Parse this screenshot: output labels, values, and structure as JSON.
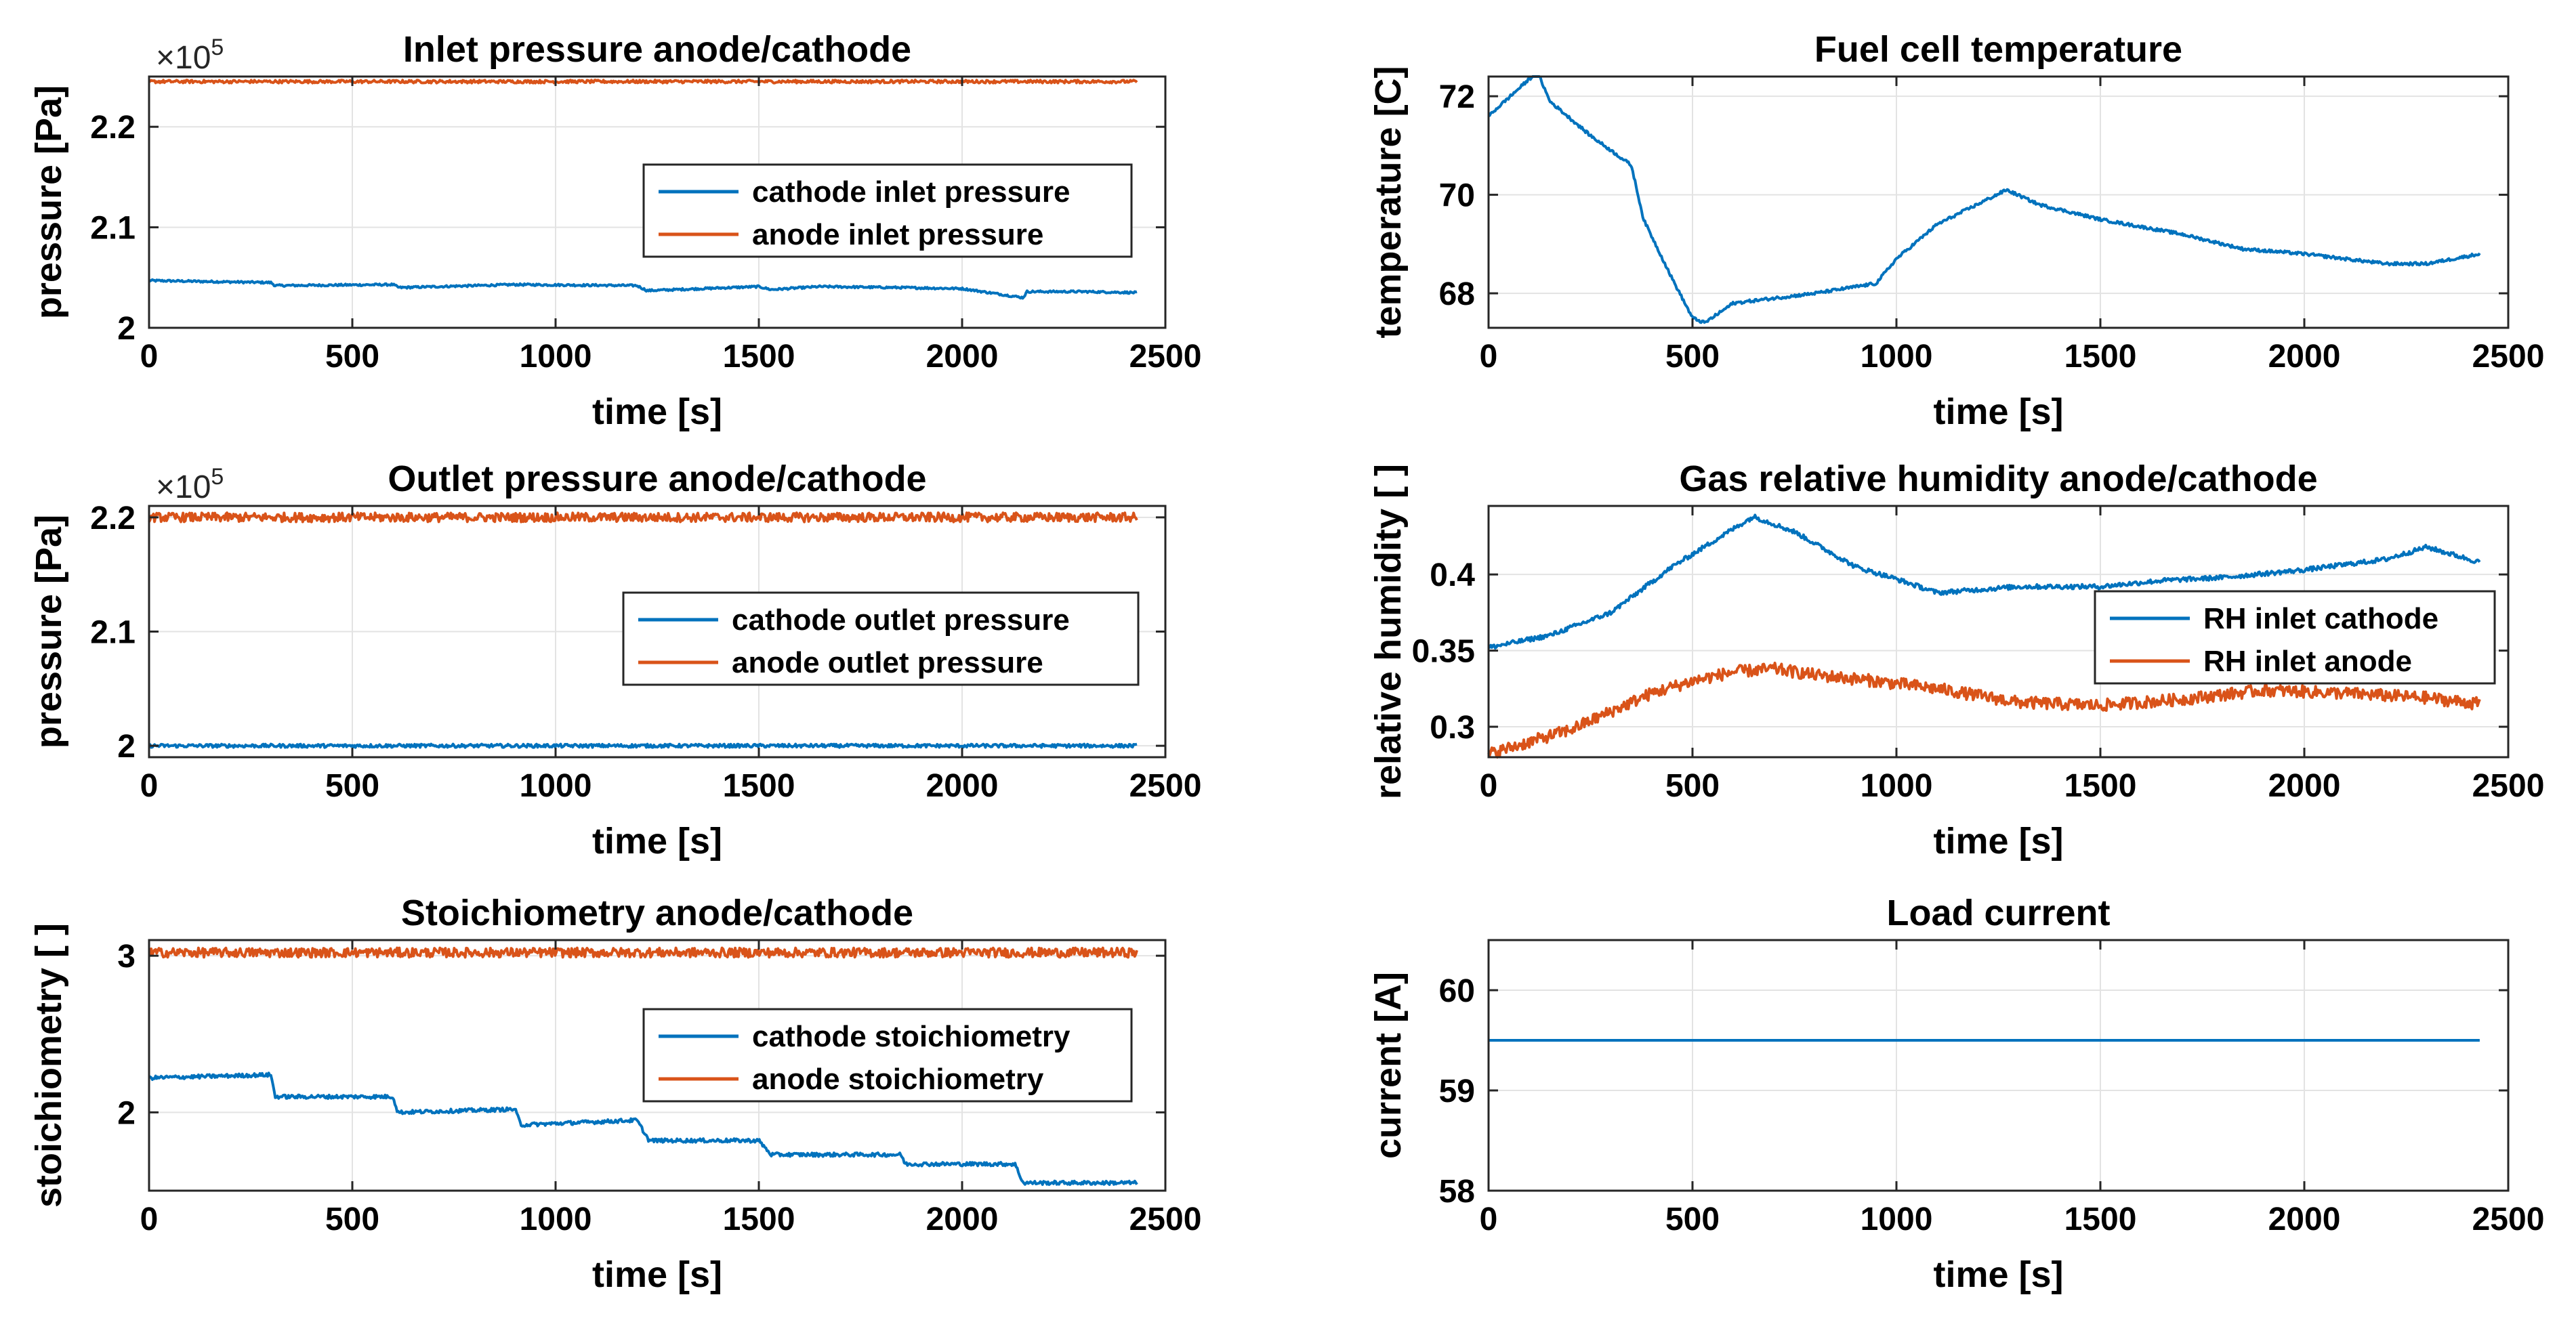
{
  "colors": {
    "cathode": "#0072BD",
    "anode": "#D95319",
    "axis": "#262626",
    "grid": "#e3e3e3"
  },
  "chart_data": [
    {
      "id": "inlet",
      "type": "line",
      "title": "Inlet pressure anode/cathode",
      "xlabel": "time [s]",
      "ylabel": "pressure [Pa]",
      "y_exponent": {
        "times": "×10",
        "power": "5"
      },
      "xlim": [
        0,
        2500
      ],
      "ylim": [
        2.0,
        2.25
      ],
      "xticks": [
        0,
        500,
        1000,
        1500,
        2000,
        2500
      ],
      "xtick_labels": [
        "0",
        "500",
        "1000",
        "1500",
        "2000",
        "2500"
      ],
      "yticks": [
        2.0,
        2.1,
        2.2
      ],
      "ytick_labels": [
        "2",
        "2.1",
        "2.2"
      ],
      "legend": {
        "position": "center-right"
      },
      "series": [
        {
          "name": "cathode inlet pressure",
          "color": "#0072BD",
          "x": [
            0,
            150,
            300,
            310,
            600,
            615,
            900,
            1200,
            1225,
            1500,
            1530,
            1650,
            1850,
            2000,
            2150,
            2160,
            2300,
            2430
          ],
          "y": [
            2.047,
            2.046,
            2.045,
            2.042,
            2.043,
            2.04,
            2.043,
            2.042,
            2.037,
            2.041,
            2.038,
            2.041,
            2.04,
            2.039,
            2.03,
            2.036,
            2.036,
            2.035
          ],
          "noise": 0.001
        },
        {
          "name": "anode inlet pressure",
          "color": "#D95319",
          "x": [
            0,
            2430
          ],
          "y": [
            2.245,
            2.245
          ],
          "noise": 0.0015
        }
      ]
    },
    {
      "id": "outlet",
      "type": "line",
      "title": "Outlet pressure anode/cathode",
      "xlabel": "time [s]",
      "ylabel": "pressure [Pa]",
      "y_exponent": {
        "times": "×10",
        "power": "5"
      },
      "xlim": [
        0,
        2500
      ],
      "ylim": [
        1.99,
        2.21
      ],
      "xticks": [
        0,
        500,
        1000,
        1500,
        2000,
        2500
      ],
      "xtick_labels": [
        "0",
        "500",
        "1000",
        "1500",
        "2000",
        "2500"
      ],
      "yticks": [
        2.0,
        2.1,
        2.2
      ],
      "ytick_labels": [
        "2",
        "2.1",
        "2.2"
      ],
      "legend": {
        "position": "center-right"
      },
      "series": [
        {
          "name": "cathode outlet pressure",
          "color": "#0072BD",
          "x": [
            0,
            500,
            1000,
            1500,
            2000,
            2430
          ],
          "y": [
            2.0,
            2.0,
            2.0,
            2.0,
            2.0,
            2.0
          ],
          "noise": 0.0015
        },
        {
          "name": "anode outlet pressure",
          "color": "#D95319",
          "x": [
            0,
            2430
          ],
          "y": [
            2.2,
            2.2
          ],
          "noise": 0.004
        }
      ]
    },
    {
      "id": "stoich",
      "type": "line",
      "title": "Stoichiometry anode/cathode",
      "xlabel": "time [s]",
      "ylabel": "stoichiometry [ ]",
      "xlim": [
        0,
        2500
      ],
      "ylim": [
        1.5,
        3.1
      ],
      "xticks": [
        0,
        500,
        1000,
        1500,
        2000,
        2500
      ],
      "xtick_labels": [
        "0",
        "500",
        "1000",
        "1500",
        "2000",
        "2500"
      ],
      "yticks": [
        2,
        3
      ],
      "ytick_labels": [
        "2",
        "3"
      ],
      "legend": {
        "position": "center-right"
      },
      "series": [
        {
          "name": "cathode stoichiometry",
          "color": "#0072BD",
          "x": [
            0,
            300,
            310,
            600,
            612,
            900,
            915,
            1200,
            1230,
            1500,
            1530,
            1850,
            1860,
            2130,
            2150,
            2430
          ],
          "y": [
            2.22,
            2.24,
            2.1,
            2.1,
            2.0,
            2.02,
            1.92,
            1.95,
            1.82,
            1.82,
            1.73,
            1.73,
            1.67,
            1.67,
            1.55,
            1.55
          ],
          "noise": 0.012
        },
        {
          "name": "anode stoichiometry",
          "color": "#D95319",
          "x": [
            0,
            2430
          ],
          "y": [
            3.02,
            3.02
          ],
          "noise": 0.03
        }
      ]
    },
    {
      "id": "temp",
      "type": "line",
      "title": "Fuel cell temperature",
      "xlabel": "time [s]",
      "ylabel": "temperature [C]",
      "xlim": [
        0,
        2500
      ],
      "ylim": [
        67.3,
        72.4
      ],
      "xticks": [
        0,
        500,
        1000,
        1500,
        2000,
        2500
      ],
      "xtick_labels": [
        "0",
        "500",
        "1000",
        "1500",
        "2000",
        "2500"
      ],
      "yticks": [
        68,
        70,
        72
      ],
      "ytick_labels": [
        "68",
        "70",
        "72"
      ],
      "series": [
        {
          "name": "temperature",
          "color": "#0072BD",
          "x": [
            0,
            120,
            150,
            250,
            350,
            380,
            450,
            500,
            530,
            600,
            700,
            800,
            950,
            1000,
            1100,
            1270,
            1350,
            1500,
            1700,
            1850,
            2000,
            2200,
            2300,
            2430
          ],
          "y": [
            71.6,
            72.5,
            71.9,
            71.2,
            70.6,
            69.5,
            68.3,
            67.5,
            67.4,
            67.8,
            67.9,
            68.0,
            68.2,
            68.7,
            69.4,
            70.1,
            69.8,
            69.5,
            69.2,
            68.9,
            68.8,
            68.6,
            68.6,
            68.8
          ],
          "noise": 0.03
        }
      ]
    },
    {
      "id": "rh",
      "type": "line",
      "title": "Gas relative humidity anode/cathode",
      "xlabel": "time [s]",
      "ylabel": "relative humidity [ ]",
      "xlim": [
        0,
        2500
      ],
      "ylim": [
        0.28,
        0.445
      ],
      "xticks": [
        0,
        500,
        1000,
        1500,
        2000,
        2500
      ],
      "xtick_labels": [
        "0",
        "500",
        "1000",
        "1500",
        "2000",
        "2500"
      ],
      "yticks": [
        0.3,
        0.35,
        0.4
      ],
      "ytick_labels": [
        "0.3",
        "0.35",
        "0.4"
      ],
      "legend": {
        "position": "right"
      },
      "series": [
        {
          "name": "RH inlet cathode",
          "color": "#0072BD",
          "x": [
            0,
            150,
            300,
            450,
            600,
            650,
            750,
            900,
            1000,
            1100,
            1300,
            1500,
            1650,
            1800,
            2000,
            2200,
            2300,
            2430
          ],
          "y": [
            0.352,
            0.36,
            0.375,
            0.405,
            0.43,
            0.438,
            0.428,
            0.405,
            0.397,
            0.388,
            0.392,
            0.392,
            0.396,
            0.398,
            0.403,
            0.41,
            0.418,
            0.408
          ],
          "noise": 0.0015
        },
        {
          "name": "RH inlet anode",
          "color": "#D95319",
          "x": [
            0,
            100,
            200,
            300,
            400,
            500,
            600,
            700,
            800,
            950,
            1100,
            1300,
            1500,
            1700,
            1900,
            2100,
            2300,
            2430
          ],
          "y": [
            0.282,
            0.29,
            0.298,
            0.31,
            0.322,
            0.33,
            0.336,
            0.338,
            0.334,
            0.33,
            0.325,
            0.316,
            0.314,
            0.318,
            0.324,
            0.322,
            0.319,
            0.315
          ],
          "noise": 0.004
        }
      ]
    },
    {
      "id": "load",
      "type": "line",
      "title": "Load current",
      "xlabel": "time [s]",
      "ylabel": "current [A]",
      "xlim": [
        0,
        2500
      ],
      "ylim": [
        58,
        60.5
      ],
      "xticks": [
        0,
        500,
        1000,
        1500,
        2000,
        2500
      ],
      "xtick_labels": [
        "0",
        "500",
        "1000",
        "1500",
        "2000",
        "2500"
      ],
      "yticks": [
        58,
        59,
        60
      ],
      "ytick_labels": [
        "58",
        "59",
        "60"
      ],
      "series": [
        {
          "name": "current",
          "color": "#0072BD",
          "x": [
            0,
            2430
          ],
          "y": [
            59.5,
            59.5
          ],
          "noise": 0
        }
      ]
    }
  ]
}
